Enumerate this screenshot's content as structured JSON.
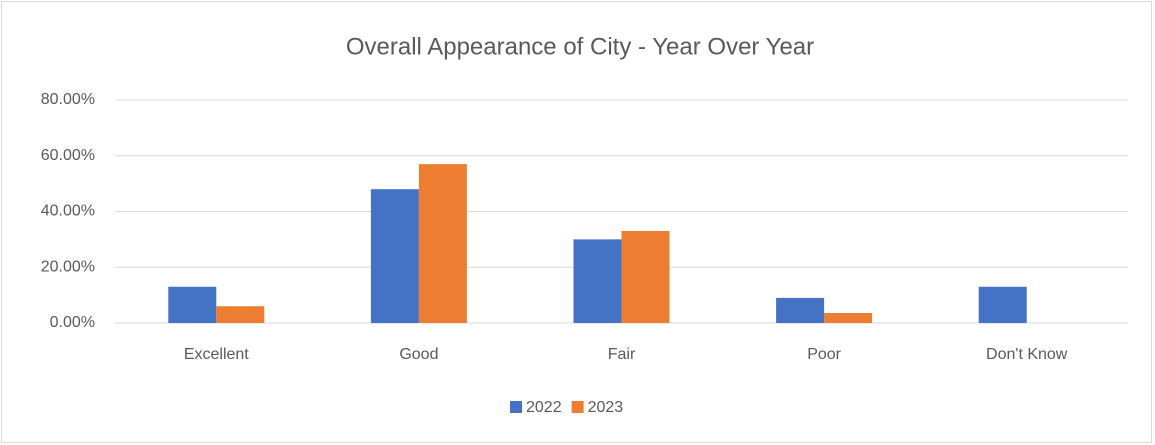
{
  "chart_data": {
    "type": "bar",
    "title": "Overall Appearance of City - Year Over Year",
    "categories": [
      "Excellent",
      "Good",
      "Fair",
      "Poor",
      "Don't Know"
    ],
    "series": [
      {
        "name": "2022",
        "color": "#4472c4",
        "values": [
          13,
          48,
          30,
          9,
          13
        ]
      },
      {
        "name": "2023",
        "color": "#ed7d31",
        "values": [
          6,
          57,
          33,
          3.6,
          null
        ]
      }
    ],
    "ylim": [
      0,
      80
    ],
    "yticks": [
      {
        "value": 0,
        "label": "0.00%"
      },
      {
        "value": 20,
        "label": "20.00%"
      },
      {
        "value": 40,
        "label": "40.00%"
      },
      {
        "value": 60,
        "label": "60.00%"
      },
      {
        "value": 80,
        "label": "80.00%"
      }
    ],
    "grid": true,
    "legend": "bottom"
  }
}
